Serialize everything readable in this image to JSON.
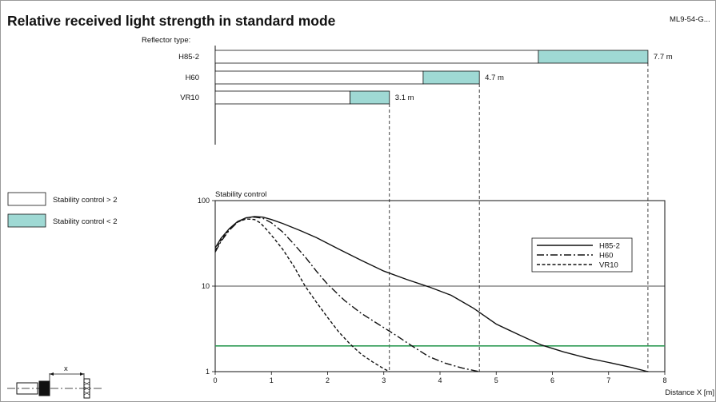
{
  "title": "Relative received light strength in standard mode",
  "model_code": "ML9-54-G...",
  "reflector_caption": "Reflector type:",
  "colors": {
    "stable": "#ffffff",
    "unstable": "#9fd9d4",
    "threshold": "#2e9a55"
  },
  "legend_boxes": [
    {
      "label": "Stability control > 2",
      "color": "#ffffff"
    },
    {
      "label": "Stability control < 2",
      "color": "#9fd9d4"
    }
  ],
  "diagram_label": "x",
  "chart_data": [
    {
      "type": "bar",
      "orientation": "horizontal",
      "categories": [
        "H85-2",
        "H60",
        "VR10"
      ],
      "series": [
        {
          "name": "Stability control > 2",
          "values": [
            5.75,
            3.7,
            2.4
          ]
        },
        {
          "name": "Stability control < 2",
          "values": [
            1.95,
            1.0,
            0.7
          ]
        }
      ],
      "range_labels": [
        "7.7 m",
        "4.7 m",
        "3.1 m"
      ],
      "xlim": [
        0,
        8
      ]
    },
    {
      "type": "line",
      "ylabel": "Stability control",
      "xlabel": "Distance X [m]",
      "xlim": [
        0,
        8
      ],
      "ylim": [
        1,
        100
      ],
      "yscale": "log",
      "x_ticks": [
        "0",
        "1",
        "2",
        "3",
        "4",
        "5",
        "6",
        "7",
        "8"
      ],
      "y_ticks": [
        "1",
        "10",
        "100"
      ],
      "grid": "horizontal at 10 and 100",
      "threshold": 2,
      "legend_position": "right",
      "series": [
        {
          "name": "H85-2",
          "style": "solid",
          "x": [
            0,
            0.1,
            0.25,
            0.4,
            0.55,
            0.7,
            0.85,
            1.0,
            1.2,
            1.5,
            1.8,
            2.2,
            2.6,
            3.0,
            3.4,
            3.8,
            4.2,
            4.6,
            5.0,
            5.4,
            5.8,
            6.2,
            6.6,
            7.0,
            7.4,
            7.7
          ],
          "y": [
            28,
            36,
            47,
            57,
            63,
            65,
            64,
            60,
            54,
            45,
            37,
            27,
            20,
            15,
            12,
            9.8,
            7.8,
            5.5,
            3.6,
            2.7,
            2.05,
            1.7,
            1.45,
            1.28,
            1.12,
            1.0
          ]
        },
        {
          "name": "H60",
          "style": "dashdot",
          "x": [
            0,
            0.1,
            0.25,
            0.4,
            0.55,
            0.7,
            0.85,
            1.0,
            1.2,
            1.4,
            1.6,
            1.8,
            2.0,
            2.3,
            2.6,
            2.9,
            3.2,
            3.5,
            3.8,
            4.1,
            4.4,
            4.7
          ],
          "y": [
            25,
            33,
            45,
            56,
            63,
            64,
            62,
            55,
            43,
            31,
            22,
            15,
            10.5,
            6.8,
            4.8,
            3.6,
            2.7,
            2.0,
            1.5,
            1.25,
            1.1,
            1.0
          ]
        },
        {
          "name": "VR10",
          "style": "dashed",
          "x": [
            0,
            0.1,
            0.25,
            0.4,
            0.55,
            0.7,
            0.8,
            0.9,
            1.05,
            1.2,
            1.4,
            1.6,
            1.8,
            2.0,
            2.2,
            2.4,
            2.6,
            2.8,
            3.0,
            3.1
          ],
          "y": [
            26,
            34,
            46,
            56,
            61,
            60,
            55,
            47,
            36,
            27,
            17,
            10,
            6.5,
            4.3,
            2.9,
            2.1,
            1.6,
            1.3,
            1.08,
            1.0
          ]
        }
      ]
    }
  ]
}
